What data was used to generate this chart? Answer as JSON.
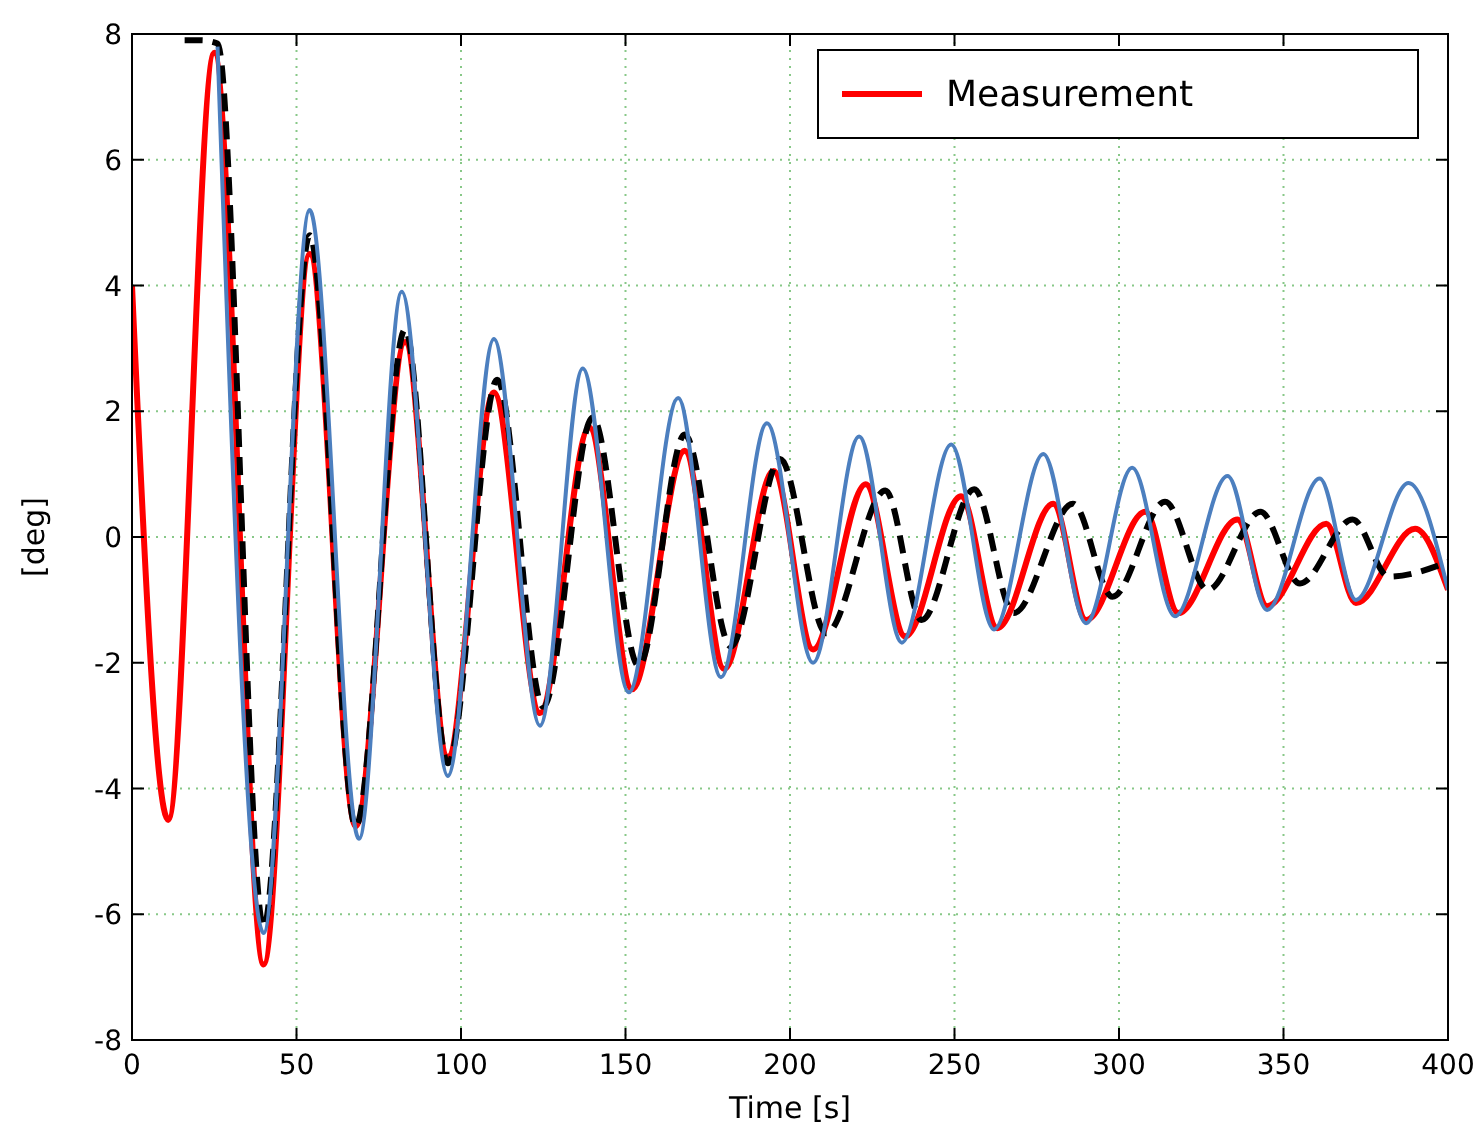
{
  "chart_data": {
    "type": "line",
    "xlabel": "Time [s]",
    "ylabel": "[deg]",
    "xlim": [
      0,
      400
    ],
    "ylim": [
      -8,
      8
    ],
    "xticks": [
      0,
      50,
      100,
      150,
      200,
      250,
      300,
      350,
      400
    ],
    "yticks": [
      -8,
      -6,
      -4,
      -2,
      0,
      2,
      4,
      6,
      8
    ],
    "grid": true,
    "legend": "top right",
    "series": [
      {
        "name": "Measurement",
        "color": "#ff0000",
        "line_style": "solid",
        "x": [
          0,
          11,
          25,
          40,
          54,
          68,
          83,
          96,
          110,
          124,
          139,
          152,
          168,
          180,
          195,
          207,
          223,
          235,
          252,
          263,
          280,
          290,
          308,
          318,
          336,
          345,
          363,
          372,
          390,
          400
        ],
        "values": [
          4.0,
          -4.5,
          7.7,
          -6.8,
          4.5,
          -4.6,
          3.1,
          -3.5,
          2.3,
          -2.8,
          1.74,
          -2.42,
          1.37,
          -2.1,
          1.05,
          -1.79,
          0.84,
          -1.58,
          0.65,
          -1.45,
          0.53,
          -1.32,
          0.4,
          -1.21,
          0.28,
          -1.1,
          0.21,
          -1.05,
          0.13,
          -0.84
        ]
      },
      {
        "color": "#000000",
        "line_style": "dashed",
        "x": [
          16,
          21,
          26,
          40,
          54,
          68,
          83,
          96,
          111,
          125,
          140,
          154,
          168,
          182,
          197,
          211,
          229,
          240,
          256,
          268,
          286,
          298,
          314,
          327,
          343,
          355,
          371,
          382,
          400
        ],
        "values": [
          7.9,
          7.9,
          7.85,
          -6.2,
          4.8,
          -4.6,
          3.3,
          -3.6,
          2.5,
          -2.7,
          1.9,
          -2.05,
          1.63,
          -1.74,
          1.24,
          -1.53,
          0.74,
          -1.32,
          0.76,
          -1.21,
          0.53,
          -0.95,
          0.56,
          -0.84,
          0.4,
          -0.74,
          0.28,
          -0.63,
          -0.4
        ]
      },
      {
        "color": "#4c7fbf",
        "line_style": "solid",
        "x": [
          26,
          40,
          54,
          69,
          82,
          96,
          110,
          124,
          137,
          151,
          166,
          179,
          193,
          207,
          221,
          234,
          249,
          262,
          277,
          290,
          304,
          317,
          333,
          345,
          361,
          372,
          388,
          400
        ],
        "values": [
          7.8,
          -6.3,
          5.2,
          -4.8,
          3.9,
          -3.8,
          3.15,
          -3.0,
          2.68,
          -2.47,
          2.21,
          -2.23,
          1.81,
          -2.0,
          1.6,
          -1.68,
          1.47,
          -1.47,
          1.32,
          -1.37,
          1.1,
          -1.26,
          0.97,
          -1.16,
          0.93,
          -1.0,
          0.86,
          -0.84
        ]
      }
    ]
  }
}
